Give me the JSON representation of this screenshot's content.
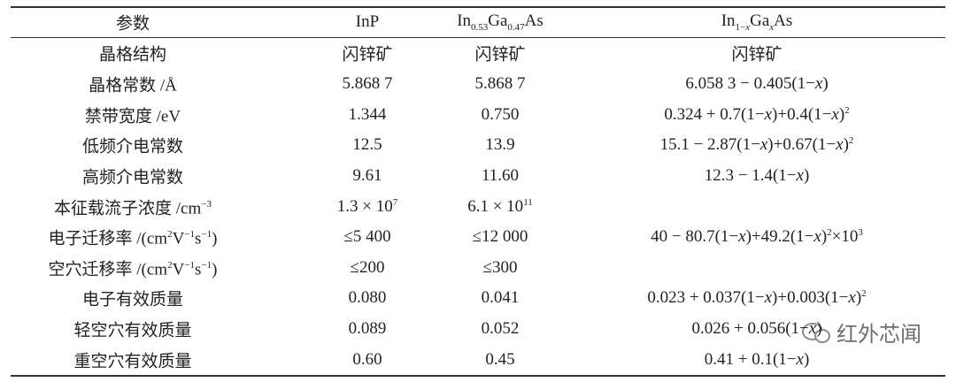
{
  "table": {
    "header": [
      [
        "参数"
      ],
      [
        "InP"
      ],
      [
        "In",
        {
          "sub": "0.53"
        },
        "Ga",
        {
          "sub": "0.47"
        },
        "As"
      ],
      [
        "In",
        {
          "sub": "1−"
        },
        {
          "isub": "x"
        },
        "Ga",
        {
          "isub": "x"
        },
        "As"
      ]
    ],
    "rows": [
      [
        [
          "晶格结构"
        ],
        [
          "闪锌矿"
        ],
        [
          "闪锌矿"
        ],
        [
          "闪锌矿"
        ]
      ],
      [
        [
          "晶格常数 /Å"
        ],
        [
          "5.868 7"
        ],
        [
          "5.868 7"
        ],
        [
          "6.058 3 − 0.405(1−",
          {
            "i": "x"
          },
          ")"
        ]
      ],
      [
        [
          "禁带宽度 /eV"
        ],
        [
          "1.344"
        ],
        [
          "0.750"
        ],
        [
          "0.324 + 0.7(1−",
          {
            "i": "x"
          },
          ")+0.4(1−",
          {
            "i": "x"
          },
          ")",
          {
            "sup": "2"
          }
        ]
      ],
      [
        [
          "低频介电常数"
        ],
        [
          "12.5"
        ],
        [
          "13.9"
        ],
        [
          "15.1 − 2.87(1−",
          {
            "i": "x"
          },
          ")+0.67(1−",
          {
            "i": "x"
          },
          ")",
          {
            "sup": "2"
          }
        ]
      ],
      [
        [
          "高频介电常数"
        ],
        [
          "9.61"
        ],
        [
          "11.60"
        ],
        [
          "12.3 − 1.4(1−",
          {
            "i": "x"
          },
          ")"
        ]
      ],
      [
        [
          "本征载流子浓度 /cm",
          {
            "sup": "−3"
          }
        ],
        [
          "1.3 × 10",
          {
            "sup": "7"
          }
        ],
        [
          "6.1 × 10",
          {
            "sup": "11"
          }
        ],
        null
      ],
      [
        [
          "电子迁移率 /(cm",
          {
            "sup": "2"
          },
          "V",
          {
            "sup": "−1"
          },
          "s",
          {
            "sup": "−1"
          },
          ")"
        ],
        [
          "≤5 400"
        ],
        [
          "≤12 000"
        ],
        [
          "40 − 80.7(1−",
          {
            "i": "x"
          },
          ")+49.2(1−",
          {
            "i": "x"
          },
          ")",
          {
            "sup": "2"
          },
          "×10",
          {
            "sup": "3"
          }
        ]
      ],
      [
        [
          "空穴迁移率 /(cm",
          {
            "sup": "2"
          },
          "V",
          {
            "sup": "−1"
          },
          "s",
          {
            "sup": "−1"
          },
          ")"
        ],
        [
          "≤200"
        ],
        [
          "≤300"
        ],
        null
      ],
      [
        [
          "电子有效质量"
        ],
        [
          "0.080"
        ],
        [
          "0.041"
        ],
        [
          "0.023 + 0.037(1−",
          {
            "i": "x"
          },
          ")+0.003(1−",
          {
            "i": "x"
          },
          ")",
          {
            "sup": "2"
          }
        ]
      ],
      [
        [
          "轻空穴有效质量"
        ],
        [
          "0.089"
        ],
        [
          "0.052"
        ],
        [
          "0.026 + 0.056(1−",
          {
            "i": "x"
          },
          ")"
        ]
      ],
      [
        [
          "重空穴有效质量"
        ],
        [
          "0.60"
        ],
        [
          "0.45"
        ],
        [
          "0.41 + 0.1(1−",
          {
            "i": "x"
          },
          ")"
        ]
      ]
    ]
  },
  "watermark": "红外芯闻"
}
